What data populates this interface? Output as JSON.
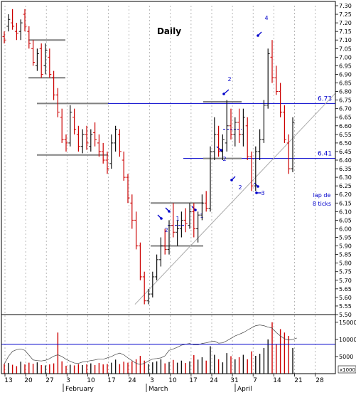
{
  "chart_data": {
    "type": "bar",
    "subtype": "ohlc",
    "title": "Daily",
    "price_axis": {
      "min": 5.5,
      "max": 7.3,
      "step": 0.05,
      "ticks": [
        "7.30",
        "7.25",
        "7.20",
        "7.15",
        "7.10",
        "7.05",
        "7.00",
        "6.95",
        "6.90",
        "6.85",
        "6.80",
        "6.75",
        "6.70",
        "6.65",
        "6.60",
        "6.55",
        "6.50",
        "6.45",
        "6.40",
        "6.35",
        "6.30",
        "6.25",
        "6.20",
        "6.15",
        "6.10",
        "6.05",
        "6.00",
        "5.95",
        "5.90",
        "5.85",
        "5.80",
        "5.75",
        "5.70",
        "5.65",
        "5.60",
        "5.55",
        "5.50"
      ],
      "grid": false
    },
    "volume_axis": {
      "min": 0,
      "max": 16000,
      "ticks": [
        "15000",
        "10000",
        "5000"
      ],
      "unit": "x1000"
    },
    "x_axis": {
      "day_labels": [
        "13",
        "20",
        "27",
        "3",
        "10",
        "17",
        "24",
        "3",
        "10",
        "17",
        "24",
        "31",
        "7",
        "14",
        "21",
        "28"
      ],
      "month_labels": [
        "February",
        "March",
        "April"
      ],
      "vertical_grid": "dashed"
    },
    "horizontal_levels": [
      {
        "price": 6.73,
        "label": "6.73",
        "color": "#0000cc"
      },
      {
        "price": 6.41,
        "label": "6.41",
        "color": "#0000cc"
      }
    ],
    "annotations": [
      "4",
      "2",
      "2",
      "2",
      "3",
      "2",
      "1",
      "1",
      "lap de",
      "8 ticks"
    ],
    "bars": [
      {
        "d": "Jan 10",
        "o": 7.12,
        "h": 7.15,
        "l": 7.08,
        "c": 7.1,
        "v": 2800,
        "up": false
      },
      {
        "d": "Jan 13",
        "o": 7.18,
        "h": 7.25,
        "l": 7.15,
        "c": 7.22,
        "v": 3100,
        "up": true
      },
      {
        "d": "Jan 14",
        "o": 7.2,
        "h": 7.28,
        "l": 7.16,
        "c": 7.18,
        "v": 2600,
        "up": false
      },
      {
        "d": "Jan 15",
        "o": 7.15,
        "h": 7.2,
        "l": 7.1,
        "c": 7.14,
        "v": 2200,
        "up": false
      },
      {
        "d": "Jan 16",
        "o": 7.15,
        "h": 7.22,
        "l": 7.1,
        "c": 7.2,
        "v": 3500,
        "up": true
      },
      {
        "d": "Jan 17",
        "o": 7.25,
        "h": 7.28,
        "l": 7.15,
        "c": 7.18,
        "v": 2700,
        "up": false
      },
      {
        "d": "Jan 20",
        "o": 7.15,
        "h": 7.18,
        "l": 7.05,
        "c": 7.08,
        "v": 3200,
        "up": false
      },
      {
        "d": "Jan 21",
        "o": 7.05,
        "h": 7.1,
        "l": 6.95,
        "c": 6.97,
        "v": 2900,
        "up": false
      },
      {
        "d": "Jan 22",
        "o": 6.95,
        "h": 7.05,
        "l": 6.92,
        "c": 7.02,
        "v": 3300,
        "up": true
      },
      {
        "d": "Jan 23",
        "o": 7.05,
        "h": 7.08,
        "l": 6.88,
        "c": 6.9,
        "v": 2500,
        "up": false
      },
      {
        "d": "Jan 24",
        "o": 6.95,
        "h": 7.08,
        "l": 6.9,
        "c": 7.04,
        "v": 2400,
        "up": true
      },
      {
        "d": "Jan 27",
        "o": 7.0,
        "h": 7.05,
        "l": 6.88,
        "c": 6.9,
        "v": 2700,
        "up": false
      },
      {
        "d": "Jan 28",
        "o": 6.88,
        "h": 6.92,
        "l": 6.75,
        "c": 6.78,
        "v": 3000,
        "up": false
      },
      {
        "d": "Jan 29",
        "o": 6.78,
        "h": 6.82,
        "l": 6.65,
        "c": 6.68,
        "v": 12000,
        "up": false
      },
      {
        "d": "Jan 30",
        "o": 6.65,
        "h": 6.7,
        "l": 6.5,
        "c": 6.52,
        "v": 3600,
        "up": false
      },
      {
        "d": "Jan 31",
        "o": 6.52,
        "h": 6.55,
        "l": 6.45,
        "c": 6.5,
        "v": 2300,
        "up": false
      },
      {
        "d": "Feb 3",
        "o": 6.5,
        "h": 6.72,
        "l": 6.48,
        "c": 6.68,
        "v": 2600,
        "up": true
      },
      {
        "d": "Feb 4",
        "o": 6.65,
        "h": 6.7,
        "l": 6.55,
        "c": 6.58,
        "v": 2400,
        "up": false
      },
      {
        "d": "Feb 5",
        "o": 6.55,
        "h": 6.6,
        "l": 6.45,
        "c": 6.48,
        "v": 2800,
        "up": false
      },
      {
        "d": "Feb 6",
        "o": 6.48,
        "h": 6.58,
        "l": 6.44,
        "c": 6.55,
        "v": 2500,
        "up": true
      },
      {
        "d": "Feb 7",
        "o": 6.55,
        "h": 6.6,
        "l": 6.46,
        "c": 6.5,
        "v": 2700,
        "up": false
      },
      {
        "d": "Feb 10",
        "o": 6.48,
        "h": 6.58,
        "l": 6.45,
        "c": 6.55,
        "v": 3000,
        "up": true
      },
      {
        "d": "Feb 11",
        "o": 6.56,
        "h": 6.62,
        "l": 6.48,
        "c": 6.52,
        "v": 2500,
        "up": false
      },
      {
        "d": "Feb 12",
        "o": 6.5,
        "h": 6.55,
        "l": 6.42,
        "c": 6.45,
        "v": 3100,
        "up": false
      },
      {
        "d": "Feb 13",
        "o": 6.45,
        "h": 6.5,
        "l": 6.38,
        "c": 6.4,
        "v": 2700,
        "up": false
      },
      {
        "d": "Feb 14",
        "o": 6.4,
        "h": 6.45,
        "l": 6.32,
        "c": 6.35,
        "v": 2800,
        "up": false
      },
      {
        "d": "Feb 17",
        "o": 6.38,
        "h": 6.55,
        "l": 6.35,
        "c": 6.5,
        "v": 3200,
        "up": true
      },
      {
        "d": "Feb 18",
        "o": 6.5,
        "h": 6.6,
        "l": 6.45,
        "c": 6.58,
        "v": 4100,
        "up": true
      },
      {
        "d": "Feb 19",
        "o": 6.55,
        "h": 6.58,
        "l": 6.42,
        "c": 6.45,
        "v": 2800,
        "up": false
      },
      {
        "d": "Feb 20",
        "o": 6.4,
        "h": 6.45,
        "l": 6.28,
        "c": 6.3,
        "v": 3500,
        "up": false
      },
      {
        "d": "Feb 21",
        "o": 6.3,
        "h": 6.32,
        "l": 6.15,
        "c": 6.18,
        "v": 3200,
        "up": false
      },
      {
        "d": "Feb 24",
        "o": 6.15,
        "h": 6.2,
        "l": 6.0,
        "c": 6.05,
        "v": 3600,
        "up": false
      },
      {
        "d": "Feb 25",
        "o": 6.05,
        "h": 6.1,
        "l": 5.88,
        "c": 5.9,
        "v": 4200,
        "up": false
      },
      {
        "d": "Feb 26",
        "o": 5.9,
        "h": 5.92,
        "l": 5.7,
        "c": 5.72,
        "v": 5200,
        "up": false
      },
      {
        "d": "Feb 27",
        "o": 5.72,
        "h": 5.75,
        "l": 5.56,
        "c": 5.58,
        "v": 3800,
        "up": false
      },
      {
        "d": "Feb 28",
        "o": 5.58,
        "h": 5.65,
        "l": 5.56,
        "c": 5.62,
        "v": 2800,
        "up": true
      },
      {
        "d": "Mar 3",
        "o": 5.62,
        "h": 5.75,
        "l": 5.6,
        "c": 5.72,
        "v": 3300,
        "up": true
      },
      {
        "d": "Mar 4",
        "o": 5.72,
        "h": 5.85,
        "l": 5.7,
        "c": 5.82,
        "v": 3600,
        "up": true
      },
      {
        "d": "Mar 5",
        "o": 5.82,
        "h": 5.95,
        "l": 5.78,
        "c": 5.9,
        "v": 4200,
        "up": true
      },
      {
        "d": "Mar 6",
        "o": 5.9,
        "h": 6.0,
        "l": 5.85,
        "c": 5.88,
        "v": 3000,
        "up": false
      },
      {
        "d": "Mar 7",
        "o": 5.88,
        "h": 6.05,
        "l": 5.85,
        "c": 6.02,
        "v": 3400,
        "up": true
      },
      {
        "d": "Mar 10",
        "o": 6.02,
        "h": 6.15,
        "l": 5.95,
        "c": 5.98,
        "v": 4000,
        "up": false
      },
      {
        "d": "Mar 11",
        "o": 5.98,
        "h": 6.05,
        "l": 5.9,
        "c": 6.0,
        "v": 3200,
        "up": true
      },
      {
        "d": "Mar 12",
        "o": 6.0,
        "h": 6.1,
        "l": 5.95,
        "c": 6.05,
        "v": 3800,
        "up": true
      },
      {
        "d": "Mar 13",
        "o": 6.05,
        "h": 6.12,
        "l": 5.98,
        "c": 6.03,
        "v": 3100,
        "up": false
      },
      {
        "d": "Mar 14",
        "o": 6.02,
        "h": 6.15,
        "l": 6.0,
        "c": 6.1,
        "v": 3600,
        "up": true
      },
      {
        "d": "Mar 17",
        "o": 6.1,
        "h": 6.15,
        "l": 5.95,
        "c": 6.0,
        "v": 5400,
        "up": false
      },
      {
        "d": "Mar 18",
        "o": 6.0,
        "h": 6.1,
        "l": 5.92,
        "c": 6.08,
        "v": 4100,
        "up": true
      },
      {
        "d": "Mar 19",
        "o": 6.08,
        "h": 6.2,
        "l": 6.05,
        "c": 6.15,
        "v": 4800,
        "up": true
      },
      {
        "d": "Mar 20",
        "o": 6.15,
        "h": 6.22,
        "l": 6.1,
        "c": 6.12,
        "v": 3800,
        "up": false
      },
      {
        "d": "Mar 21",
        "o": 6.12,
        "h": 6.48,
        "l": 6.1,
        "c": 6.45,
        "v": 8000,
        "up": true
      },
      {
        "d": "Mar 24",
        "o": 6.45,
        "h": 6.65,
        "l": 6.4,
        "c": 6.55,
        "v": 5500,
        "up": true
      },
      {
        "d": "Mar 25",
        "o": 6.55,
        "h": 6.6,
        "l": 6.42,
        "c": 6.45,
        "v": 4200,
        "up": false
      },
      {
        "d": "Mar 26",
        "o": 6.45,
        "h": 6.55,
        "l": 6.4,
        "c": 6.52,
        "v": 3300,
        "up": true
      },
      {
        "d": "Mar 27",
        "o": 6.5,
        "h": 6.75,
        "l": 6.45,
        "c": 6.6,
        "v": 6000,
        "up": true
      },
      {
        "d": "Mar 28",
        "o": 6.6,
        "h": 6.7,
        "l": 6.52,
        "c": 6.55,
        "v": 5100,
        "up": false
      },
      {
        "d": "Mar 31",
        "o": 6.55,
        "h": 6.65,
        "l": 6.48,
        "c": 6.62,
        "v": 4200,
        "up": true
      },
      {
        "d": "Apr 1",
        "o": 6.62,
        "h": 6.7,
        "l": 6.5,
        "c": 6.55,
        "v": 4800,
        "up": false
      },
      {
        "d": "Apr 2",
        "o": 6.55,
        "h": 6.7,
        "l": 6.48,
        "c": 6.65,
        "v": 5500,
        "up": true
      },
      {
        "d": "Apr 3",
        "o": 6.6,
        "h": 6.65,
        "l": 6.4,
        "c": 6.42,
        "v": 4200,
        "up": false
      },
      {
        "d": "Apr 4",
        "o": 6.42,
        "h": 6.45,
        "l": 6.22,
        "c": 6.25,
        "v": 6500,
        "up": false
      },
      {
        "d": "Apr 7",
        "o": 6.25,
        "h": 6.48,
        "l": 6.22,
        "c": 6.45,
        "v": 5200,
        "up": true
      },
      {
        "d": "Apr 8",
        "o": 6.45,
        "h": 6.58,
        "l": 6.4,
        "c": 6.52,
        "v": 5800,
        "up": true
      },
      {
        "d": "Apr 9",
        "o": 6.52,
        "h": 6.75,
        "l": 6.5,
        "c": 6.72,
        "v": 7500,
        "up": true
      },
      {
        "d": "Apr 10",
        "o": 6.72,
        "h": 7.05,
        "l": 6.7,
        "c": 7.02,
        "v": 10000,
        "up": true
      },
      {
        "d": "Apr 11",
        "o": 7.0,
        "h": 7.1,
        "l": 6.85,
        "c": 6.88,
        "v": 15000,
        "up": false
      },
      {
        "d": "Apr 14",
        "o": 6.88,
        "h": 6.95,
        "l": 6.78,
        "c": 6.8,
        "v": 8500,
        "up": false
      },
      {
        "d": "Apr 15",
        "o": 6.8,
        "h": 6.85,
        "l": 6.65,
        "c": 6.68,
        "v": 13000,
        "up": false
      },
      {
        "d": "Apr 16",
        "o": 6.68,
        "h": 6.72,
        "l": 6.5,
        "c": 6.52,
        "v": 12000,
        "up": false
      },
      {
        "d": "Apr 17",
        "o": 6.5,
        "h": 6.55,
        "l": 6.32,
        "c": 6.35,
        "v": 11000,
        "up": false
      },
      {
        "d": "Apr 18",
        "o": 6.35,
        "h": 6.65,
        "l": 6.33,
        "c": 6.62,
        "v": 7500,
        "up": true
      }
    ],
    "volume_overlay": [
      2800,
      5000,
      6500,
      7000,
      7200,
      6800,
      5400,
      4000,
      3800,
      3700,
      3900,
      4400,
      5100,
      5500,
      5000,
      4200,
      3600,
      3100,
      3000,
      3400,
      3600,
      3800,
      4000,
      4300,
      4200,
      4600,
      5000,
      5600,
      6000,
      5500,
      4600,
      3800,
      3000,
      2700,
      3000,
      3700,
      4300,
      4400,
      4600,
      5200,
      6800,
      7200,
      7700,
      8300,
      8600,
      8800,
      8400,
      8400,
      8800,
      9000,
      9300,
      9500,
      8900,
      9000,
      9600,
      10300,
      11000,
      11500,
      12000,
      12700,
      13400,
      14000,
      14200,
      14000,
      13600,
      13300,
      12000,
      11000,
      10200,
      9800,
      10000,
      10400
    ],
    "volume_overlay_line": 8600
  }
}
